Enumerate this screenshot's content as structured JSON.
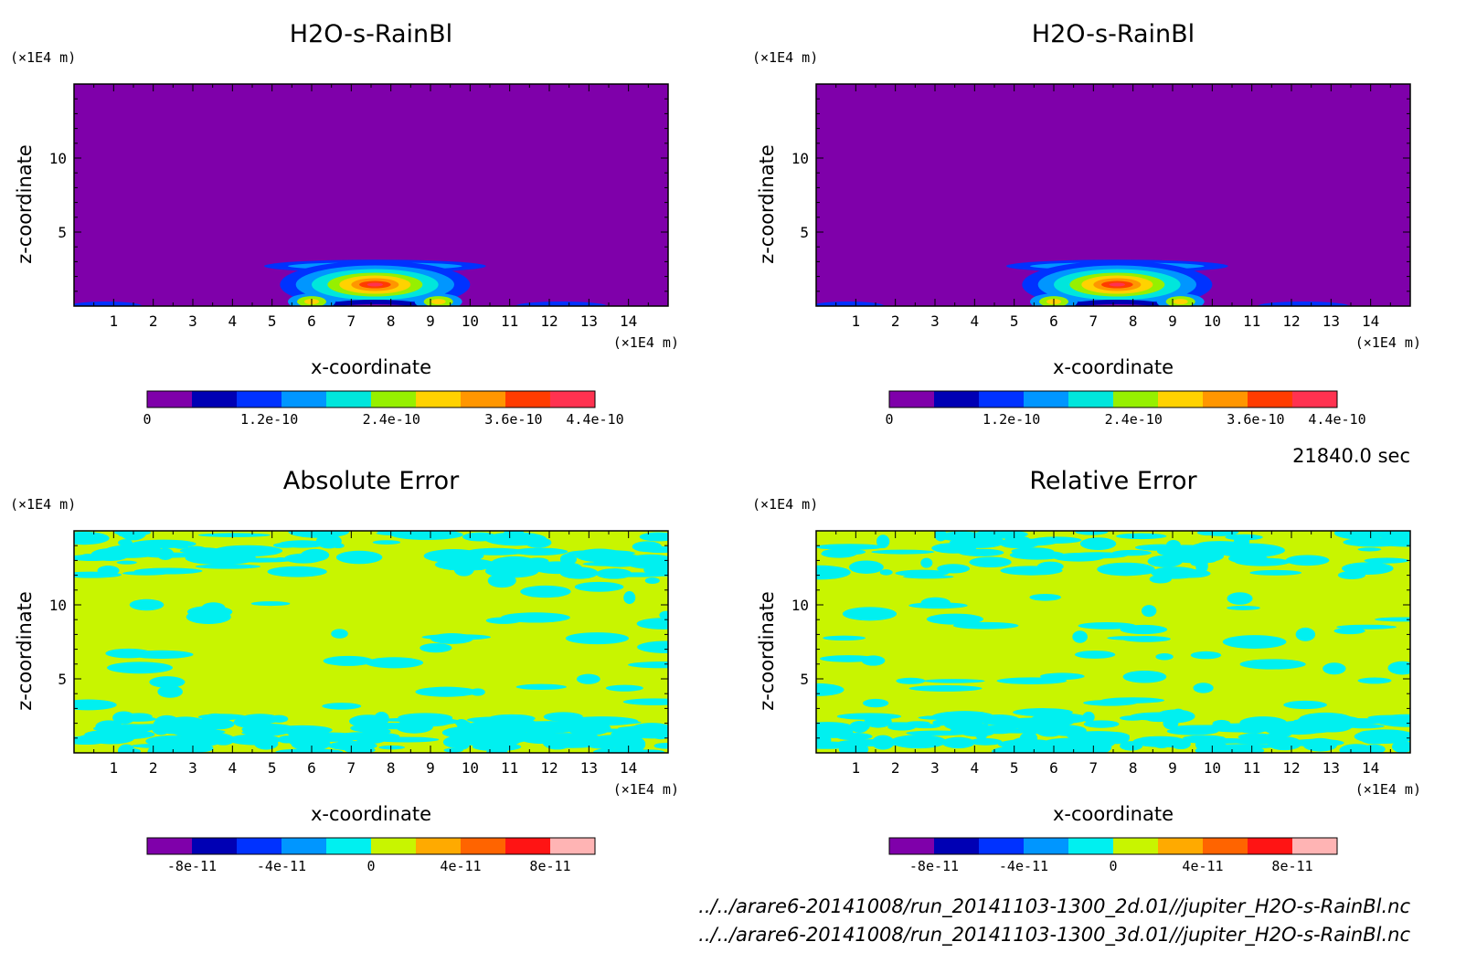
{
  "time_label": "21840.0 sec",
  "footer": {
    "file_2d": "../../arare6-20141008/run_20141103-1300_2d.01//jupiter_H2O-s-RainBl.nc",
    "file_3d": "../../arare6-20141008/run_20141103-1300_3d.01//jupiter_H2O-s-RainBl.nc"
  },
  "chart_data": [
    {
      "type": "heatmap",
      "title": "H2O-s-RainBl",
      "xlabel": "x-coordinate",
      "ylabel": "z-coordinate",
      "x_unit": "(×1E4 m)",
      "y_unit": "(×1E4 m)",
      "xlim": [
        0,
        15
      ],
      "ylim": [
        0,
        15
      ],
      "x_ticks": [
        "1",
        "2",
        "3",
        "4",
        "5",
        "6",
        "7",
        "8",
        "9",
        "10",
        "11",
        "12",
        "13",
        "14"
      ],
      "y_ticks": [
        "5",
        "10"
      ],
      "colorbar": {
        "colors": [
          "#7f00aa",
          "#0000b4",
          "#0032ff",
          "#0096ff",
          "#00e6dc",
          "#96f000",
          "#ffd200",
          "#ff9600",
          "#ff3c00",
          "#ff3250"
        ],
        "tick_labels": [
          "0",
          "1.2e-10",
          "2.4e-10",
          "3.6e-10",
          "4.4e-10"
        ],
        "tick_values": [
          0,
          1.2e-10,
          2.4e-10,
          3.6e-10,
          4.4e-10
        ],
        "vmin": 0,
        "vmax": 4.4e-10
      },
      "field": "rain-blob"
    },
    {
      "type": "heatmap",
      "title": "H2O-s-RainBl",
      "xlabel": "x-coordinate",
      "ylabel": "z-coordinate",
      "x_unit": "(×1E4 m)",
      "y_unit": "(×1E4 m)",
      "xlim": [
        0,
        15
      ],
      "ylim": [
        0,
        15
      ],
      "x_ticks": [
        "1",
        "2",
        "3",
        "4",
        "5",
        "6",
        "7",
        "8",
        "9",
        "10",
        "11",
        "12",
        "13",
        "14"
      ],
      "y_ticks": [
        "5",
        "10"
      ],
      "colorbar": {
        "colors": [
          "#7f00aa",
          "#0000b4",
          "#0032ff",
          "#0096ff",
          "#00e6dc",
          "#96f000",
          "#ffd200",
          "#ff9600",
          "#ff3c00",
          "#ff3250"
        ],
        "tick_labels": [
          "0",
          "1.2e-10",
          "2.4e-10",
          "3.6e-10",
          "4.4e-10"
        ],
        "tick_values": [
          0,
          1.2e-10,
          2.4e-10,
          3.6e-10,
          4.4e-10
        ],
        "vmin": 0,
        "vmax": 4.4e-10
      },
      "field": "rain-blob"
    },
    {
      "type": "heatmap",
      "title": "Absolute Error",
      "xlabel": "x-coordinate",
      "ylabel": "z-coordinate",
      "x_unit": "(×1E4 m)",
      "y_unit": "(×1E4 m)",
      "xlim": [
        0,
        15
      ],
      "ylim": [
        0,
        15
      ],
      "x_ticks": [
        "1",
        "2",
        "3",
        "4",
        "5",
        "6",
        "7",
        "8",
        "9",
        "10",
        "11",
        "12",
        "13",
        "14"
      ],
      "y_ticks": [
        "5",
        "10"
      ],
      "colorbar": {
        "colors": [
          "#7f00aa",
          "#0000b4",
          "#0032ff",
          "#0096ff",
          "#00f0f0",
          "#c8f500",
          "#ffaa00",
          "#ff6400",
          "#ff1414",
          "#ffb4b4"
        ],
        "tick_labels": [
          "-8e-11",
          "-4e-11",
          "0",
          "4e-11",
          "8e-11"
        ],
        "tick_values": [
          -8e-11,
          -4e-11,
          0,
          4e-11,
          8e-11
        ],
        "vmin": -1e-10,
        "vmax": 1e-10
      },
      "field": "noise",
      "dominant_color": "#c8f500",
      "patch_color": "#00f0f0"
    },
    {
      "type": "heatmap",
      "title": "Relative Error",
      "xlabel": "x-coordinate",
      "ylabel": "z-coordinate",
      "x_unit": "(×1E4 m)",
      "y_unit": "(×1E4 m)",
      "xlim": [
        0,
        15
      ],
      "ylim": [
        0,
        15
      ],
      "x_ticks": [
        "1",
        "2",
        "3",
        "4",
        "5",
        "6",
        "7",
        "8",
        "9",
        "10",
        "11",
        "12",
        "13",
        "14"
      ],
      "y_ticks": [
        "5",
        "10"
      ],
      "colorbar": {
        "colors": [
          "#7f00aa",
          "#0000b4",
          "#0032ff",
          "#0096ff",
          "#00f0f0",
          "#c8f500",
          "#ffaa00",
          "#ff6400",
          "#ff1414",
          "#ffb4b4"
        ],
        "tick_labels": [
          "-8e-11",
          "-4e-11",
          "0",
          "4e-11",
          "8e-11"
        ],
        "tick_values": [
          -8e-11,
          -4e-11,
          0,
          4e-11,
          8e-11
        ],
        "vmin": -1e-10,
        "vmax": 1e-10
      },
      "field": "noise",
      "dominant_color": "#c8f500",
      "patch_color": "#00f0f0"
    }
  ]
}
